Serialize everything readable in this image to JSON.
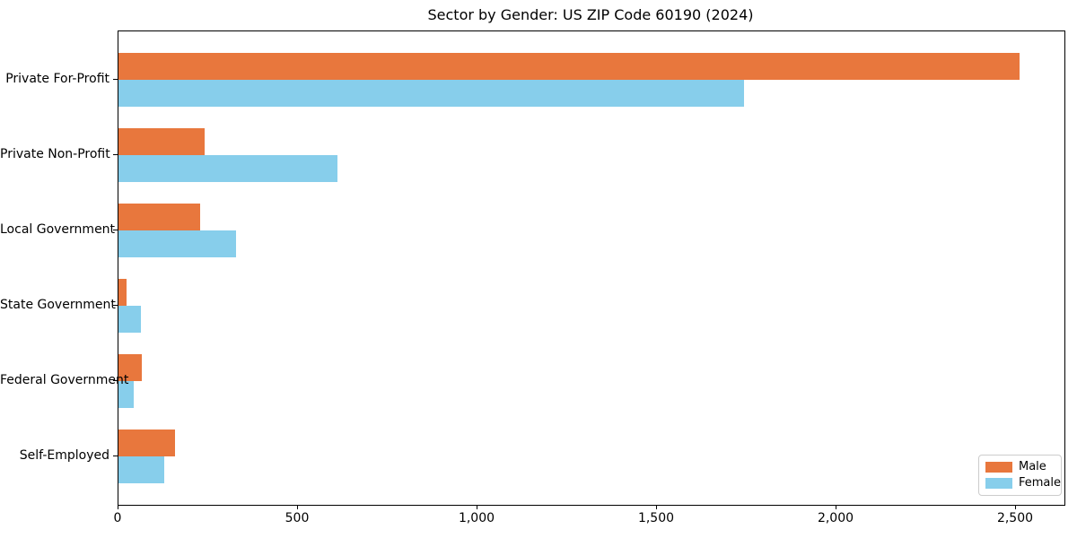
{
  "chart_data": {
    "type": "bar",
    "orientation": "horizontal",
    "title": "Sector by Gender: US ZIP Code 60190 (2024)",
    "categories": [
      "Private For-Profit",
      "Private Non-Profit",
      "Local Government",
      "State Government",
      "Federal Government",
      "Self-Employed"
    ],
    "series": [
      {
        "name": "Male",
        "color": "#e8773d",
        "values": [
          2510,
          240,
          228,
          23,
          66,
          158
        ]
      },
      {
        "name": "Female",
        "color": "#87ceeb",
        "values": [
          1743,
          610,
          328,
          62,
          42,
          128
        ]
      }
    ],
    "xlabel": "",
    "ylabel": "",
    "xlim": [
      0,
      2635
    ],
    "xticks": [
      {
        "value": 0,
        "label": "0"
      },
      {
        "value": 500,
        "label": "500"
      },
      {
        "value": 1000,
        "label": "1,000"
      },
      {
        "value": 1500,
        "label": "1,500"
      },
      {
        "value": 2000,
        "label": "2,000"
      },
      {
        "value": 2500,
        "label": "2,500"
      }
    ],
    "grid": false,
    "legend": {
      "position": "lower right",
      "entries": [
        {
          "label": "Male",
          "color": "#e8773d"
        },
        {
          "label": "Female",
          "color": "#87ceeb"
        }
      ]
    }
  }
}
